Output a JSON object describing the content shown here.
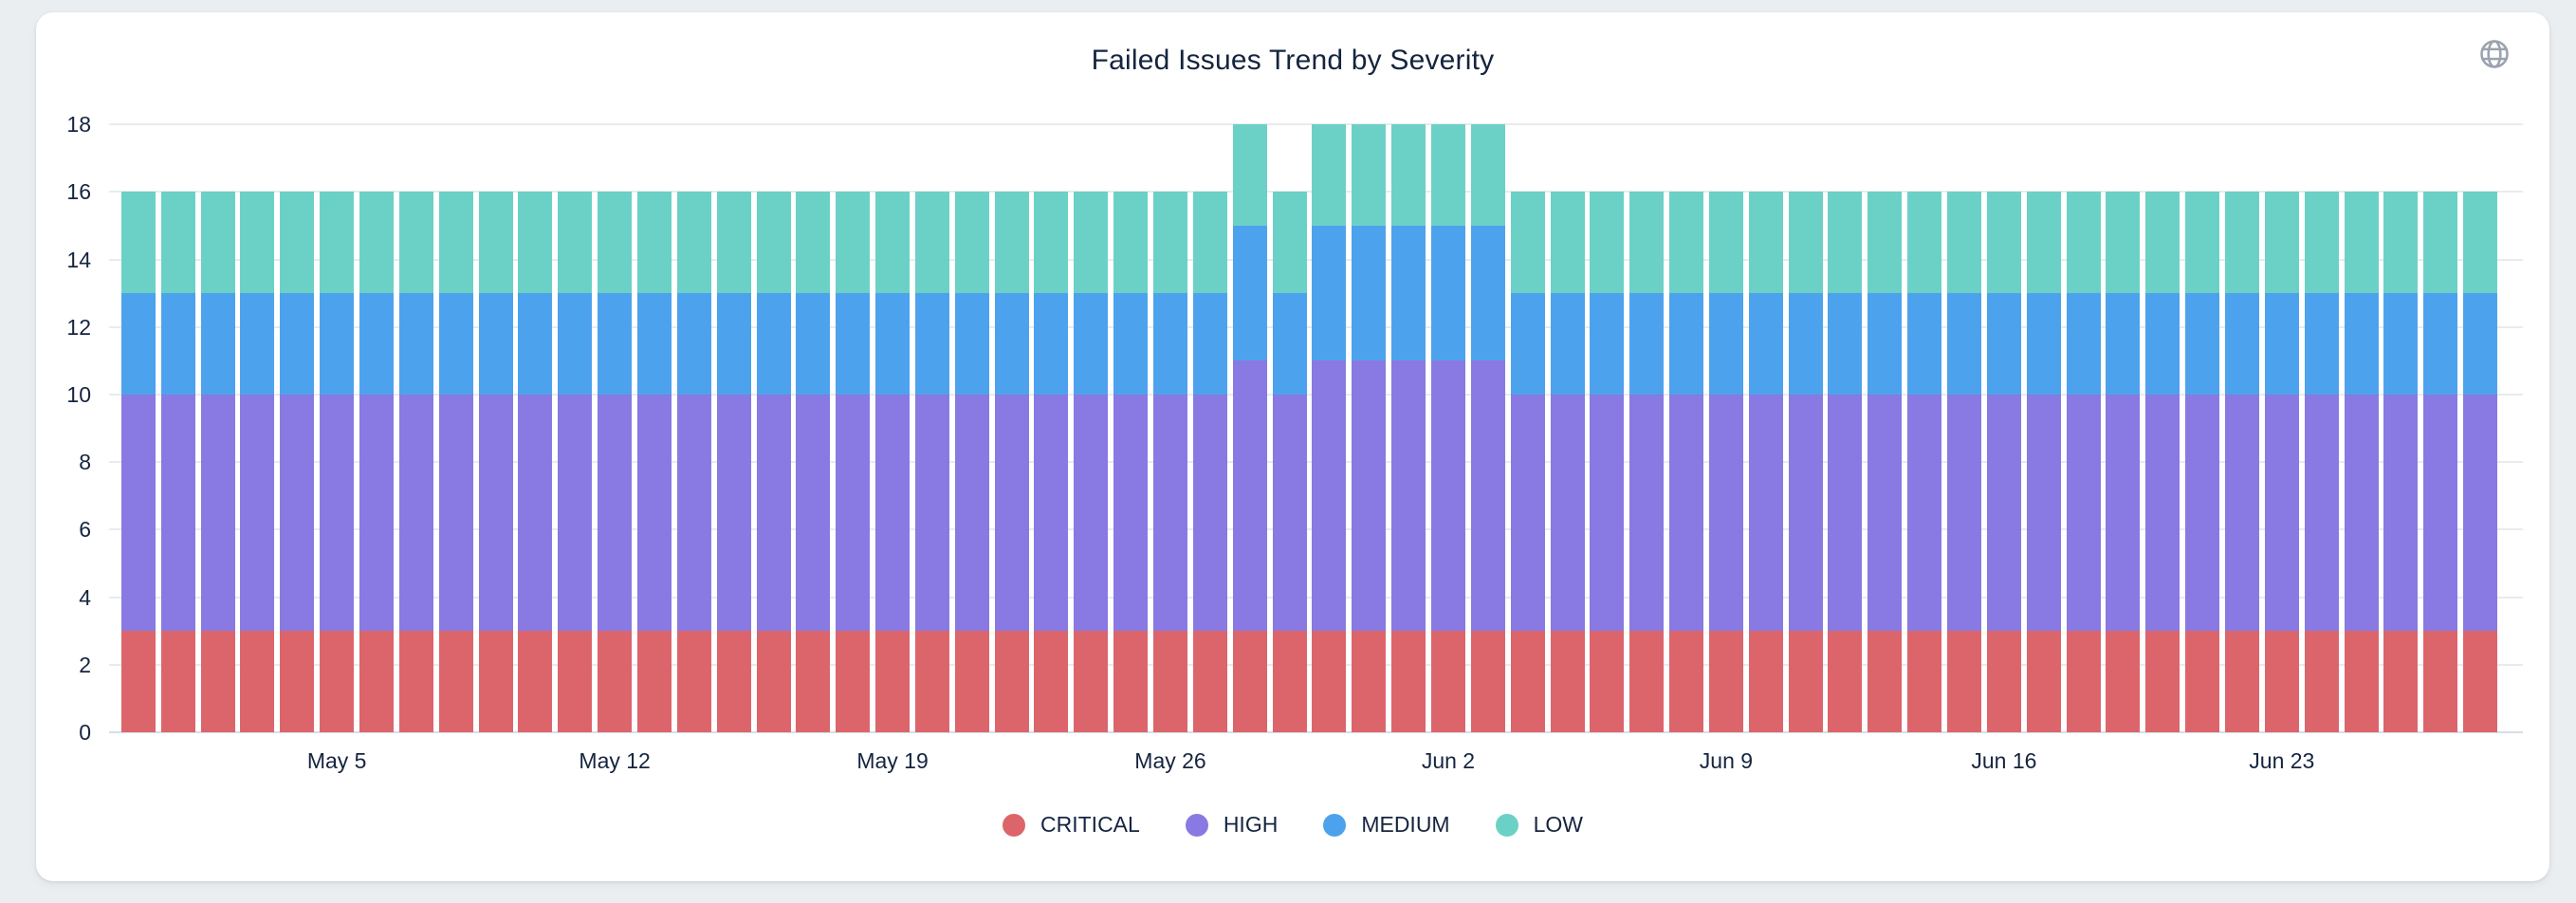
{
  "page": {
    "background_color": "#ebeef1"
  },
  "card": {
    "background_color": "#ffffff"
  },
  "header": {
    "title": "Failed Issues Trend by Severity",
    "globe_icon": "globe-icon",
    "globe_icon_color": "#9aa3ae"
  },
  "text_color": "#15243f",
  "gridline_color": "#e9ebee",
  "baseline_color": "#d8dde6",
  "chart_data": {
    "type": "bar",
    "stacked": true,
    "title": "Failed Issues Trend by Severity",
    "xlabel": "",
    "ylabel": "",
    "ylim": [
      0,
      18
    ],
    "y_ticks": [
      0,
      2,
      4,
      6,
      8,
      10,
      12,
      14,
      16,
      18
    ],
    "grid": true,
    "legend_position": "bottom",
    "categories": [
      "Apr 30",
      "May 1",
      "May 2",
      "May 3",
      "May 4",
      "May 5",
      "May 6",
      "May 7",
      "May 8",
      "May 9",
      "May 10",
      "May 11",
      "May 12",
      "May 13",
      "May 14",
      "May 15",
      "May 16",
      "May 17",
      "May 18",
      "May 19",
      "May 20",
      "May 21",
      "May 22",
      "May 23",
      "May 24",
      "May 25",
      "May 26",
      "May 27",
      "May 28",
      "May 29",
      "May 30",
      "May 31",
      "Jun 1",
      "Jun 2",
      "Jun 3",
      "Jun 4",
      "Jun 5",
      "Jun 6",
      "Jun 7",
      "Jun 8",
      "Jun 9",
      "Jun 10",
      "Jun 11",
      "Jun 12",
      "Jun 13",
      "Jun 14",
      "Jun 15",
      "Jun 16",
      "Jun 17",
      "Jun 18",
      "Jun 19",
      "Jun 20",
      "Jun 21",
      "Jun 22",
      "Jun 23",
      "Jun 24",
      "Jun 25",
      "Jun 26",
      "Jun 27",
      "Jun 28"
    ],
    "x_tick_labels": [
      "May 5",
      "May 12",
      "May 19",
      "May 26",
      "Jun 2",
      "Jun 9",
      "Jun 16",
      "Jun 23"
    ],
    "x_tick_indices": [
      5,
      12,
      19,
      26,
      33,
      40,
      47,
      54
    ],
    "series": [
      {
        "name": "CRITICAL",
        "color": "#dc656c",
        "values": [
          3,
          3,
          3,
          3,
          3,
          3,
          3,
          3,
          3,
          3,
          3,
          3,
          3,
          3,
          3,
          3,
          3,
          3,
          3,
          3,
          3,
          3,
          3,
          3,
          3,
          3,
          3,
          3,
          3,
          3,
          3,
          3,
          3,
          3,
          3,
          3,
          3,
          3,
          3,
          3,
          3,
          3,
          3,
          3,
          3,
          3,
          3,
          3,
          3,
          3,
          3,
          3,
          3,
          3,
          3,
          3,
          3,
          3,
          3,
          3
        ]
      },
      {
        "name": "HIGH",
        "color": "#8979e2",
        "values": [
          7,
          7,
          7,
          7,
          7,
          7,
          7,
          7,
          7,
          7,
          7,
          7,
          7,
          7,
          7,
          7,
          7,
          7,
          7,
          7,
          7,
          7,
          7,
          7,
          7,
          7,
          7,
          7,
          8,
          7,
          8,
          8,
          8,
          8,
          8,
          7,
          7,
          7,
          7,
          7,
          7,
          7,
          7,
          7,
          7,
          7,
          7,
          7,
          7,
          7,
          7,
          7,
          7,
          7,
          7,
          7,
          7,
          7,
          7,
          7
        ]
      },
      {
        "name": "MEDIUM",
        "color": "#4da2ee",
        "values": [
          3,
          3,
          3,
          3,
          3,
          3,
          3,
          3,
          3,
          3,
          3,
          3,
          3,
          3,
          3,
          3,
          3,
          3,
          3,
          3,
          3,
          3,
          3,
          3,
          3,
          3,
          3,
          3,
          4,
          3,
          4,
          4,
          4,
          4,
          4,
          3,
          3,
          3,
          3,
          3,
          3,
          3,
          3,
          3,
          3,
          3,
          3,
          3,
          3,
          3,
          3,
          3,
          3,
          3,
          3,
          3,
          3,
          3,
          3,
          3
        ]
      },
      {
        "name": "LOW",
        "color": "#6bd1c6",
        "values": [
          3,
          3,
          3,
          3,
          3,
          3,
          3,
          3,
          3,
          3,
          3,
          3,
          3,
          3,
          3,
          3,
          3,
          3,
          3,
          3,
          3,
          3,
          3,
          3,
          3,
          3,
          3,
          3,
          3,
          3,
          3,
          3,
          3,
          3,
          3,
          3,
          3,
          3,
          3,
          3,
          3,
          3,
          3,
          3,
          3,
          3,
          3,
          3,
          3,
          3,
          3,
          3,
          3,
          3,
          3,
          3,
          3,
          3,
          3,
          3
        ]
      }
    ],
    "legend": [
      "CRITICAL",
      "HIGH",
      "MEDIUM",
      "LOW"
    ]
  }
}
